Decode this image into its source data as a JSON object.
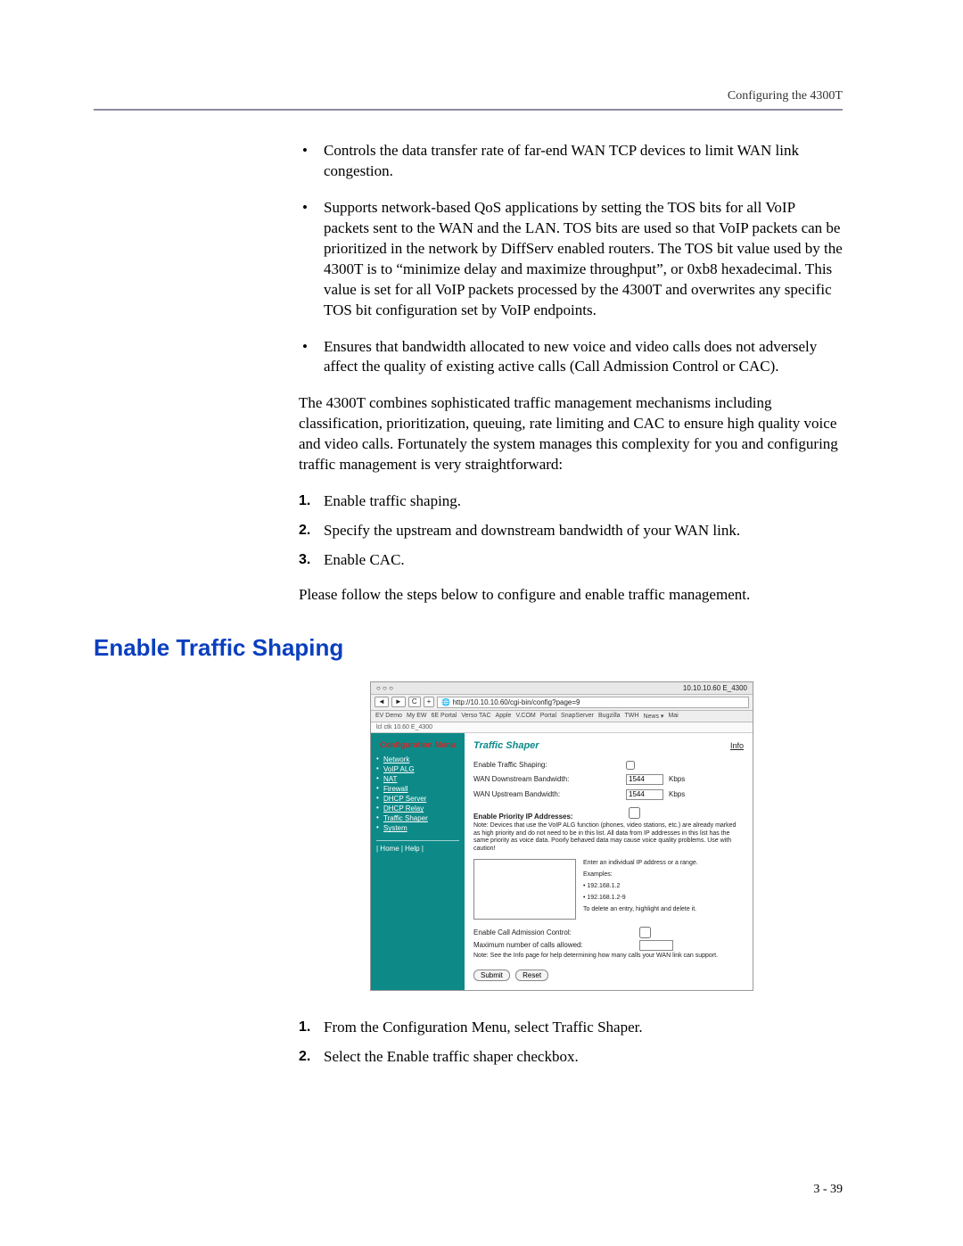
{
  "header": {
    "running": "Configuring the 4300T"
  },
  "bullets": [
    "Controls the data transfer rate of far-end WAN TCP devices to limit WAN link congestion.",
    "Supports network-based QoS applications by setting the TOS bits for all VoIP packets sent to the WAN and the LAN. TOS bits are used so that VoIP packets can be prioritized in the network by DiffServ enabled routers.  The TOS bit value used by the 4300T is to “minimize delay and maximize throughput”, or 0xb8 hexadecimal.  This value is set for all VoIP packets processed by the 4300T and overwrites any specific TOS bit configuration set by VoIP endpoints.",
    "Ensures that bandwidth allocated to new voice and video calls does not adversely affect the quality of existing active calls (Call Admission Control or CAC)."
  ],
  "para1": "The 4300T combines sophisticated traffic management mechanisms including classification, prioritization, queuing, rate limiting and CAC to ensure high quality voice and video calls.  Fortunately the system manages this complexity for you and configuring traffic management is very straightforward:",
  "steps1": [
    "Enable traffic shaping.",
    "Specify the upstream and downstream bandwidth of your WAN link.",
    "Enable CAC."
  ],
  "para2": "Please follow the steps below to configure and enable traffic management.",
  "section_title": "Enable Traffic Shaping",
  "steps2": [
    "From the Configuration Menu, select Traffic Shaper.",
    "Select the Enable traffic shaper checkbox."
  ],
  "pagenum": "3 - 39",
  "screenshot": {
    "ip_display": "10.10.10.60 E_4300",
    "url": "http://10.10.10.60/cgi-bin/config?page=9",
    "bookmarks": [
      "EV Demo",
      "My EW",
      "6E Portal",
      "Verso TAC",
      "Apple",
      "V.COM",
      "Portal",
      "SnapServer",
      "Bugzilla",
      "TWH",
      "News ▾",
      "Mai"
    ],
    "ipbar": "lcl ctk 10.60 E_4300",
    "sidebar": {
      "title": "Configuration Menu",
      "items": [
        "Network",
        "VoIP ALG",
        "NAT",
        "Firewall",
        "DHCP Server",
        "DHCP Relay",
        "Traffic Shaper",
        "System"
      ],
      "footer": "| Home | Help |"
    },
    "main": {
      "title": "Traffic Shaper",
      "info": "Info",
      "enable_label": "Enable Traffic Shaping:",
      "wan_down_label": "WAN Downstream Bandwidth:",
      "wan_down_value": "1544",
      "wan_up_label": "WAN Upstream Bandwidth:",
      "wan_up_value": "1544",
      "unit": "Kbps",
      "prio_heading": "Enable Priority IP Addresses:",
      "prio_note": "Note: Devices that use the VoIP ALG function (phones, video stations, etc.) are already marked as high priority and do not need to be in this list. All data from IP addresses in this list has the same priority as voice data. Poorly behaved data may cause voice quality problems. Use with caution!",
      "iphelp_intro": "Enter an individual IP address or a range.",
      "iphelp_examples_label": "Examples:",
      "iphelp_ex1": "• 192.168.1.2",
      "iphelp_ex2": "• 192.168.1.2-9",
      "iphelp_delete": "To delete an entry, highlight and delete it.",
      "cac_label": "Enable Call Admission Control:",
      "max_calls_label": "Maximum number of calls allowed:",
      "cac_note": "Note: See the Info page for help determining how many calls your WAN link can support.",
      "submit": "Submit",
      "reset": "Reset"
    },
    "colors": {
      "sidebar_bg": "#0d8a88",
      "sidebar_title": "#c62828",
      "main_title": "#0d8a88",
      "section_heading": "#0a3fbf"
    }
  }
}
